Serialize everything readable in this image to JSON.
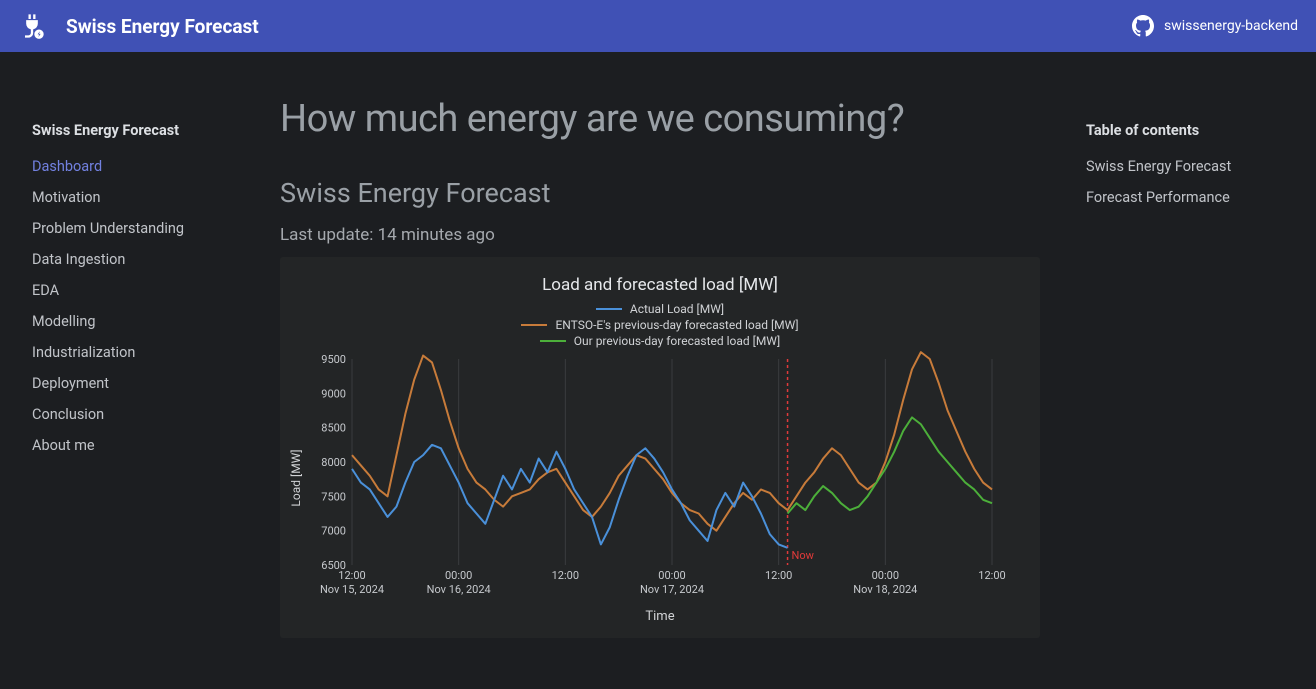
{
  "header": {
    "site_title": "Swiss Energy Forecast",
    "repo_label": "swissenergy-backend"
  },
  "sidebar": {
    "title": "Swiss Energy Forecast",
    "items": [
      {
        "label": "Dashboard",
        "active": true
      },
      {
        "label": "Motivation",
        "active": false
      },
      {
        "label": "Problem Understanding",
        "active": false
      },
      {
        "label": "Data Ingestion",
        "active": false
      },
      {
        "label": "EDA",
        "active": false
      },
      {
        "label": "Modelling",
        "active": false
      },
      {
        "label": "Industrialization",
        "active": false
      },
      {
        "label": "Deployment",
        "active": false
      },
      {
        "label": "Conclusion",
        "active": false
      },
      {
        "label": "About me",
        "active": false
      }
    ]
  },
  "toc": {
    "title": "Table of contents",
    "items": [
      {
        "label": "Swiss Energy Forecast"
      },
      {
        "label": "Forecast Performance"
      }
    ]
  },
  "main": {
    "page_title": "How much energy are we consuming?",
    "section_heading": "Swiss Energy Forecast",
    "update_text": "Last update: 14 minutes ago"
  },
  "chart": {
    "type": "line",
    "title": "Load and forecasted load [MW]",
    "x_label": "Time",
    "y_label": "Load [MW]",
    "background_color": "#232526",
    "grid_color": "#3a3c3f",
    "line_width": 2,
    "y_axis": {
      "min": 6500,
      "max": 9500,
      "step": 500,
      "ticks": [
        6500,
        7000,
        7500,
        8000,
        8500,
        9000,
        9500
      ]
    },
    "x_axis": {
      "min": 0,
      "max": 72,
      "ticks": [
        {
          "t": 0,
          "line1": "12:00",
          "line2": "Nov 15, 2024"
        },
        {
          "t": 12,
          "line1": "00:00",
          "line2": "Nov 16, 2024"
        },
        {
          "t": 24,
          "line1": "12:00",
          "line2": ""
        },
        {
          "t": 36,
          "line1": "00:00",
          "line2": "Nov 17, 2024"
        },
        {
          "t": 48,
          "line1": "12:00",
          "line2": ""
        },
        {
          "t": 60,
          "line1": "00:00",
          "line2": "Nov 18, 2024"
        },
        {
          "t": 72,
          "line1": "12:00",
          "line2": ""
        }
      ]
    },
    "now": {
      "t": 49,
      "label": "Now",
      "color": "#e03a3a"
    },
    "legend": [
      {
        "label": "Actual Load [MW]",
        "color": "#4a90d9"
      },
      {
        "label": "ENTSO-E's previous-day forecasted load [MW]",
        "color": "#c77b3a"
      },
      {
        "label": "Our previous-day forecasted load [MW]",
        "color": "#4caf3a"
      }
    ],
    "series": {
      "actual": {
        "color": "#4a90d9",
        "t_range": [
          0,
          49
        ],
        "values": [
          7900,
          7700,
          7600,
          7400,
          7200,
          7350,
          7700,
          8000,
          8100,
          8250,
          8200,
          7950,
          7700,
          7400,
          7250,
          7100,
          7450,
          7800,
          7600,
          7900,
          7700,
          8050,
          7850,
          8150,
          7900,
          7600,
          7400,
          7200,
          6800,
          7050,
          7450,
          7800,
          8100,
          8200,
          8050,
          7850,
          7600,
          7400,
          7150,
          7000,
          6850,
          7300,
          7550,
          7350,
          7700,
          7500,
          7250,
          6950,
          6800,
          6750
        ]
      },
      "entsoe": {
        "color": "#c77b3a",
        "t_range": [
          0,
          72
        ],
        "values": [
          8100,
          7950,
          7800,
          7600,
          7500,
          8100,
          8700,
          9200,
          9550,
          9450,
          9050,
          8600,
          8200,
          7900,
          7700,
          7600,
          7450,
          7350,
          7500,
          7550,
          7600,
          7750,
          7850,
          7900,
          7700,
          7500,
          7300,
          7200,
          7350,
          7550,
          7800,
          7950,
          8100,
          8050,
          7900,
          7750,
          7550,
          7400,
          7300,
          7250,
          7100,
          7000,
          7200,
          7400,
          7550,
          7450,
          7600,
          7550,
          7400,
          7300,
          7500,
          7700,
          7850,
          8050,
          8200,
          8100,
          7900,
          7700,
          7600,
          7700,
          8000,
          8400,
          8900,
          9350,
          9600,
          9500,
          9150,
          8750,
          8450,
          8150,
          7900,
          7700,
          7600
        ]
      },
      "ours": {
        "color": "#4caf3a",
        "t_range": [
          49,
          72
        ],
        "values": [
          7250,
          7400,
          7300,
          7500,
          7650,
          7550,
          7400,
          7300,
          7350,
          7500,
          7700,
          7900,
          8150,
          8450,
          8650,
          8550,
          8350,
          8150,
          8000,
          7850,
          7700,
          7600,
          7450,
          7400
        ]
      }
    }
  }
}
